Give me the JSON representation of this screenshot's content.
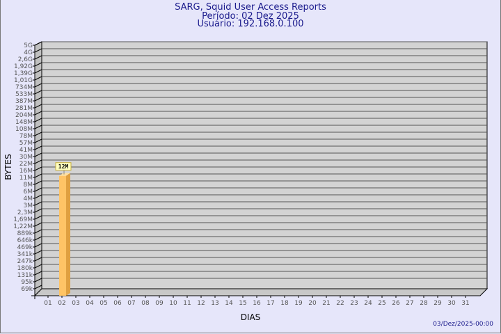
{
  "header": {
    "title": "SARG, Squid User Access Reports",
    "period": "Período: 02 Dez 2025",
    "user": "Usuário: 192.168.0.100"
  },
  "footer": {
    "generated": "03/Dez/2025-00:00"
  },
  "colors": {
    "background": "#e6e6fa",
    "plot": "#d3d3d3",
    "bar": "#ffc466",
    "bar_side": "#e0a040",
    "text": "#1a1a8c"
  },
  "chart_data": {
    "type": "bar",
    "style": "3d",
    "xlabel": "DIAS",
    "ylabel": "BYTES",
    "grid": true,
    "y_scale": "log",
    "yticks": [
      "69k",
      "95k",
      "131k",
      "180k",
      "247k",
      "341k",
      "469k",
      "646k",
      "889k",
      "1,22M",
      "1,69M",
      "2,3M",
      "3M",
      "4M",
      "6M",
      "8M",
      "11M",
      "16M",
      "22M",
      "30M",
      "41M",
      "57M",
      "78M",
      "108M",
      "148M",
      "204M",
      "281M",
      "387M",
      "533M",
      "734M",
      "1,01G",
      "1,39G",
      "1,92G",
      "2,6G",
      "4G",
      "5G"
    ],
    "categories": [
      "01",
      "02",
      "03",
      "04",
      "05",
      "06",
      "07",
      "08",
      "09",
      "10",
      "11",
      "12",
      "13",
      "14",
      "15",
      "16",
      "17",
      "18",
      "19",
      "20",
      "21",
      "22",
      "23",
      "24",
      "25",
      "26",
      "27",
      "28",
      "29",
      "30",
      "31"
    ],
    "bars": [
      {
        "category": "02",
        "value_label": "12M",
        "value": 12000000
      }
    ]
  }
}
